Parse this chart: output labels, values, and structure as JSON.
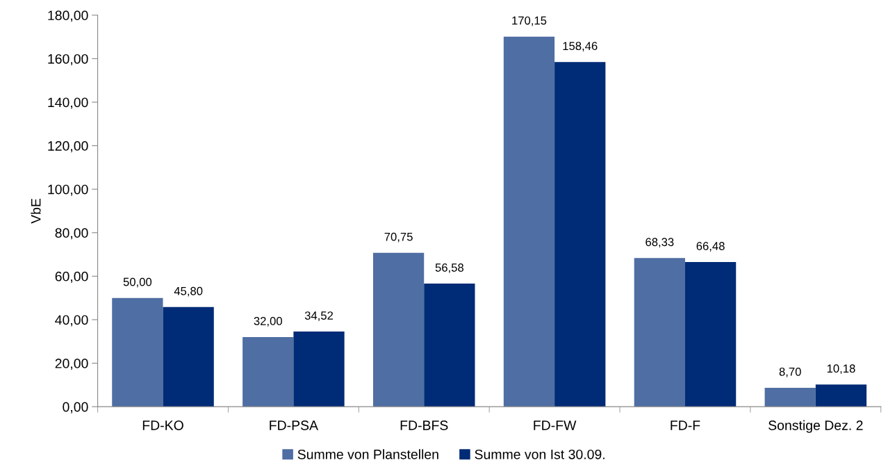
{
  "chart_data": {
    "type": "bar",
    "ylabel": "VbE",
    "categories": [
      "FD-KO",
      "FD-PSA",
      "FD-BFS",
      "FD-FW",
      "FD-F",
      "Sonstige Dez. 2"
    ],
    "series": [
      {
        "name": "Summe von Planstellen",
        "color": "#4f6ea3",
        "values": [
          50.0,
          32.0,
          70.75,
          170.15,
          68.33,
          8.7
        ],
        "value_labels": [
          "50,00",
          "32,00",
          "70,75",
          "170,15",
          "68,33",
          "8,70"
        ]
      },
      {
        "name": "Summe von Ist 30.09.",
        "color": "#002b76",
        "values": [
          45.8,
          34.52,
          56.58,
          158.46,
          66.48,
          10.18
        ],
        "value_labels": [
          "45,80",
          "34,52",
          "56,58",
          "158,46",
          "66,48",
          "10,18"
        ]
      }
    ],
    "ylim": [
      0,
      180
    ],
    "yticks": [
      {
        "value": 0,
        "label": "0,00"
      },
      {
        "value": 20,
        "label": "20,00"
      },
      {
        "value": 40,
        "label": "40,00"
      },
      {
        "value": 60,
        "label": "60,00"
      },
      {
        "value": 80,
        "label": "80,00"
      },
      {
        "value": 100,
        "label": "100,00"
      },
      {
        "value": 120,
        "label": "120,00"
      },
      {
        "value": 140,
        "label": "140,00"
      },
      {
        "value": 160,
        "label": "160,00"
      },
      {
        "value": 180,
        "label": "180,00"
      }
    ],
    "grid": false,
    "legend": "bottom"
  }
}
